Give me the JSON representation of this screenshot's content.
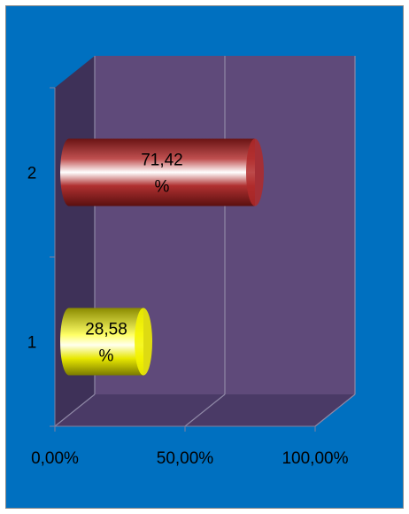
{
  "chart_data": {
    "type": "bar",
    "orientation": "horizontal",
    "style": "3d-cylinder",
    "title": "",
    "xlabel": "",
    "ylabel": "",
    "categories": [
      "1",
      "2"
    ],
    "values": [
      28.58,
      71.42
    ],
    "data_labels": [
      "28,58 %",
      "71,42 %"
    ],
    "bar_colors": [
      "#f5f500",
      "#b02a2a"
    ],
    "xlim": [
      0,
      100
    ],
    "x_ticks": [
      0,
      50,
      100
    ],
    "x_tick_labels": [
      "0,00%",
      "50,00%",
      "100,00%"
    ],
    "grid": "vertical",
    "legend": "none",
    "colors": {
      "background": "#0070c0",
      "back_wall": "#5f4a7a",
      "floor": "#4a3a66",
      "side_wall": "#3e3158",
      "grid": "#8f88a6"
    }
  }
}
